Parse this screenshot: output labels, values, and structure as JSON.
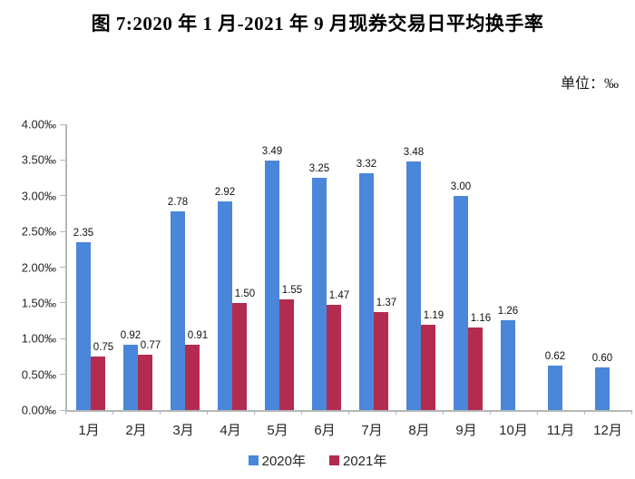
{
  "page": {
    "title": "图 7:2020 年 1 月-2021 年 9 月现券交易日平均换手率",
    "unit_label": "单位：‰"
  },
  "legend": {
    "items": [
      {
        "label": "2020年",
        "color": "#4a86d9"
      },
      {
        "label": "2021年",
        "color": "#b42b50"
      }
    ]
  },
  "chart_data": {
    "type": "bar",
    "title": "图 7:2020 年 1 月-2021 年 9 月现券交易日平均换手率",
    "unit": "‰",
    "categories": [
      "1月",
      "2月",
      "3月",
      "4月",
      "5月",
      "6月",
      "7月",
      "8月",
      "9月",
      "10月",
      "11月",
      "12月"
    ],
    "series": [
      {
        "name": "2020年",
        "color": "#4a86d9",
        "values": [
          2.35,
          0.92,
          2.78,
          2.92,
          3.49,
          3.25,
          3.32,
          3.48,
          3.0,
          1.26,
          0.62,
          0.6
        ]
      },
      {
        "name": "2021年",
        "color": "#b42b50",
        "values": [
          0.75,
          0.77,
          0.91,
          1.5,
          1.55,
          1.47,
          1.37,
          1.19,
          1.16,
          null,
          null,
          null
        ]
      }
    ],
    "ylim": [
      0,
      4
    ],
    "ytick_step": 0.5,
    "ytick_labels": [
      "0.00‰",
      "0.50‰",
      "1.00‰",
      "1.50‰",
      "2.00‰",
      "2.50‰",
      "3.00‰",
      "3.50‰",
      "4.00‰"
    ],
    "value_label_decimals": 2,
    "grid": false,
    "legend_position": "bottom"
  }
}
